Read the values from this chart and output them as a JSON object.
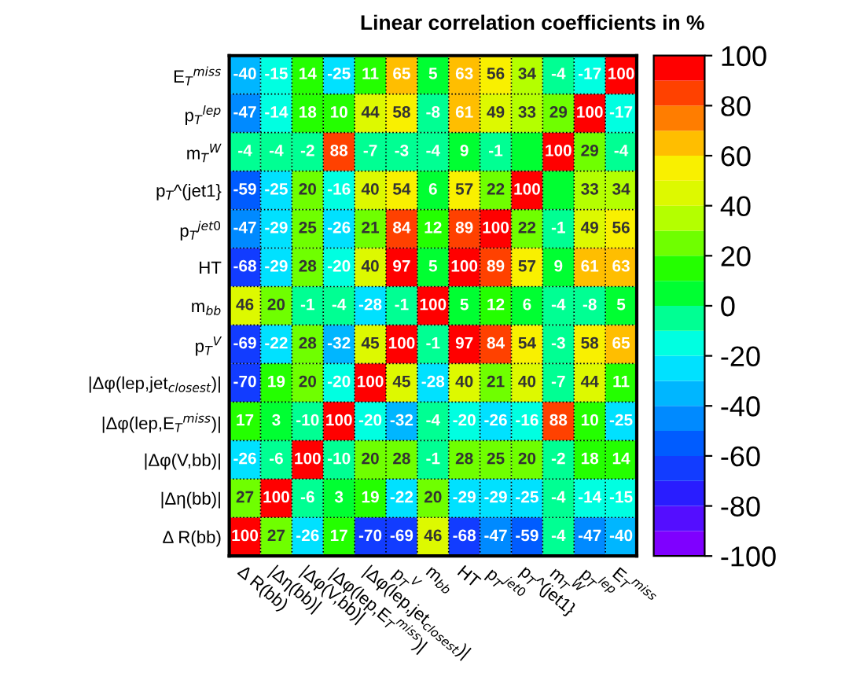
{
  "chart_data": {
    "type": "heatmap",
    "title": "Linear correlation coefficients in %",
    "categories": [
      "Δ R(bb)",
      "|Δη(bb)|",
      "|Δφ(V,bb)|",
      "|Δφ(lep,E$_{T}$$^{miss}$)|",
      "|Δφ(lep,jet$_{closest}$)|",
      "p$_{T}$$^{V}$",
      "m$_{bb}$",
      "HT",
      "p$_{T}$$^{jet0}$",
      "p$_{T}$^(jet1}",
      "m$_{T}$$^{W}$",
      "p$_{T}$$^{lep}$",
      "E$_{T}$$^{miss}$"
    ],
    "y_categories": [
      "E$_{T}$$^{miss}$",
      "p$_{T}$$^{lep}$",
      "m$_{T}$$^{W}$",
      "p$_{T}$^(jet1}",
      "p$_{T}$$^{jet0}$",
      "HT",
      "m$_{bb}$",
      "p$_{T}$$^{V}$",
      "|Δφ(lep,jet$_{closest}$)|",
      "|Δφ(lep,E$_{T}$$^{miss}$)|",
      "|Δφ(V,bb)|",
      "|Δη(bb)|",
      "Δ R(bb)"
    ],
    "cells": [
      [
        -40,
        -15,
        14,
        -25,
        11,
        65,
        5,
        63,
        56,
        34,
        -4,
        -17,
        100
      ],
      [
        -47,
        -14,
        18,
        10,
        44,
        58,
        -8,
        61,
        49,
        33,
        29,
        100,
        -17
      ],
      [
        -4,
        -4,
        -2,
        88,
        -7,
        -3,
        -4,
        9,
        -1,
        0,
        100,
        29,
        -4
      ],
      [
        -59,
        -25,
        20,
        -16,
        40,
        54,
        6,
        57,
        22,
        100,
        0,
        33,
        34
      ],
      [
        -47,
        -29,
        25,
        -26,
        21,
        84,
        12,
        89,
        100,
        22,
        -1,
        49,
        56
      ],
      [
        -68,
        -29,
        28,
        -20,
        40,
        97,
        5,
        100,
        89,
        57,
        9,
        61,
        63
      ],
      [
        46,
        20,
        -1,
        -4,
        -28,
        -1,
        100,
        5,
        12,
        6,
        -4,
        -8,
        5
      ],
      [
        -69,
        -22,
        28,
        -32,
        45,
        100,
        -1,
        97,
        84,
        54,
        -3,
        58,
        65
      ],
      [
        -70,
        19,
        20,
        -20,
        100,
        45,
        -28,
        40,
        21,
        40,
        -7,
        44,
        11
      ],
      [
        17,
        3,
        -10,
        100,
        -20,
        -32,
        -4,
        -20,
        -26,
        -16,
        88,
        10,
        -25
      ],
      [
        -26,
        -6,
        100,
        -10,
        20,
        28,
        -1,
        28,
        25,
        20,
        -2,
        18,
        14
      ],
      [
        27,
        100,
        -6,
        3,
        19,
        -22,
        20,
        -29,
        -29,
        -25,
        -4,
        -14,
        -15
      ],
      [
        100,
        27,
        -26,
        17,
        -70,
        -69,
        46,
        -68,
        -47,
        -59,
        -4,
        -47,
        -40
      ]
    ],
    "cell_labels": [
      [
        "-40",
        "-15",
        "14",
        "-25",
        "11",
        "65",
        "5",
        "63",
        "56",
        "34",
        "-4",
        "-17",
        "100"
      ],
      [
        "-47",
        "-14",
        "18",
        "10",
        "44",
        "58",
        "-8",
        "61",
        "49",
        "33",
        "29",
        "100",
        "-17"
      ],
      [
        "-4",
        "-4",
        "-2",
        "88",
        "-7",
        "-3",
        "-4",
        "9",
        "-1",
        null,
        "100",
        "29",
        "-4"
      ],
      [
        "-59",
        "-25",
        "20",
        "-16",
        "40",
        "54",
        "6",
        "57",
        "22",
        "100",
        null,
        "33",
        "34"
      ],
      [
        "-47",
        "-29",
        "25",
        "-26",
        "21",
        "84",
        "12",
        "89",
        "100",
        "22",
        "-1",
        "49",
        "56"
      ],
      [
        "-68",
        "-29",
        "28",
        "-20",
        "40",
        "97",
        "5",
        "100",
        "89",
        "57",
        "9",
        "61",
        "63"
      ],
      [
        "46",
        "20",
        "-1",
        "-4",
        "-28",
        "-1",
        "100",
        "5",
        "12",
        "6",
        "-4",
        "-8",
        "5"
      ],
      [
        "-69",
        "-22",
        "28",
        "-32",
        "45",
        "100",
        "-1",
        "97",
        "84",
        "54",
        "-3",
        "58",
        "65"
      ],
      [
        "-70",
        "19",
        "20",
        "-20",
        "100",
        "45",
        "-28",
        "40",
        "21",
        "40",
        "-7",
        "44",
        "11"
      ],
      [
        "17",
        "3",
        "-10",
        "100",
        "-20",
        "-32",
        "-4",
        "-20",
        "-26",
        "-16",
        "88",
        "10",
        "-25"
      ],
      [
        "-26",
        "-6",
        "100",
        "-10",
        "20",
        "28",
        "-1",
        "28",
        "25",
        "20",
        "-2",
        "18",
        "14"
      ],
      [
        "27",
        "100",
        "-6",
        "3",
        "19",
        "-22",
        "20",
        "-29",
        "-29",
        "-25",
        "-4",
        "-14",
        "-15"
      ],
      [
        "100",
        "27",
        "-26",
        "17",
        "-70",
        "-69",
        "46",
        "-68",
        "-47",
        "-59",
        "-4",
        "-47",
        "-40"
      ]
    ],
    "clim": [
      -100,
      100
    ],
    "cticks": [
      -100,
      -80,
      -60,
      -40,
      -20,
      0,
      20,
      40,
      60,
      80,
      100
    ],
    "grid": true
  }
}
